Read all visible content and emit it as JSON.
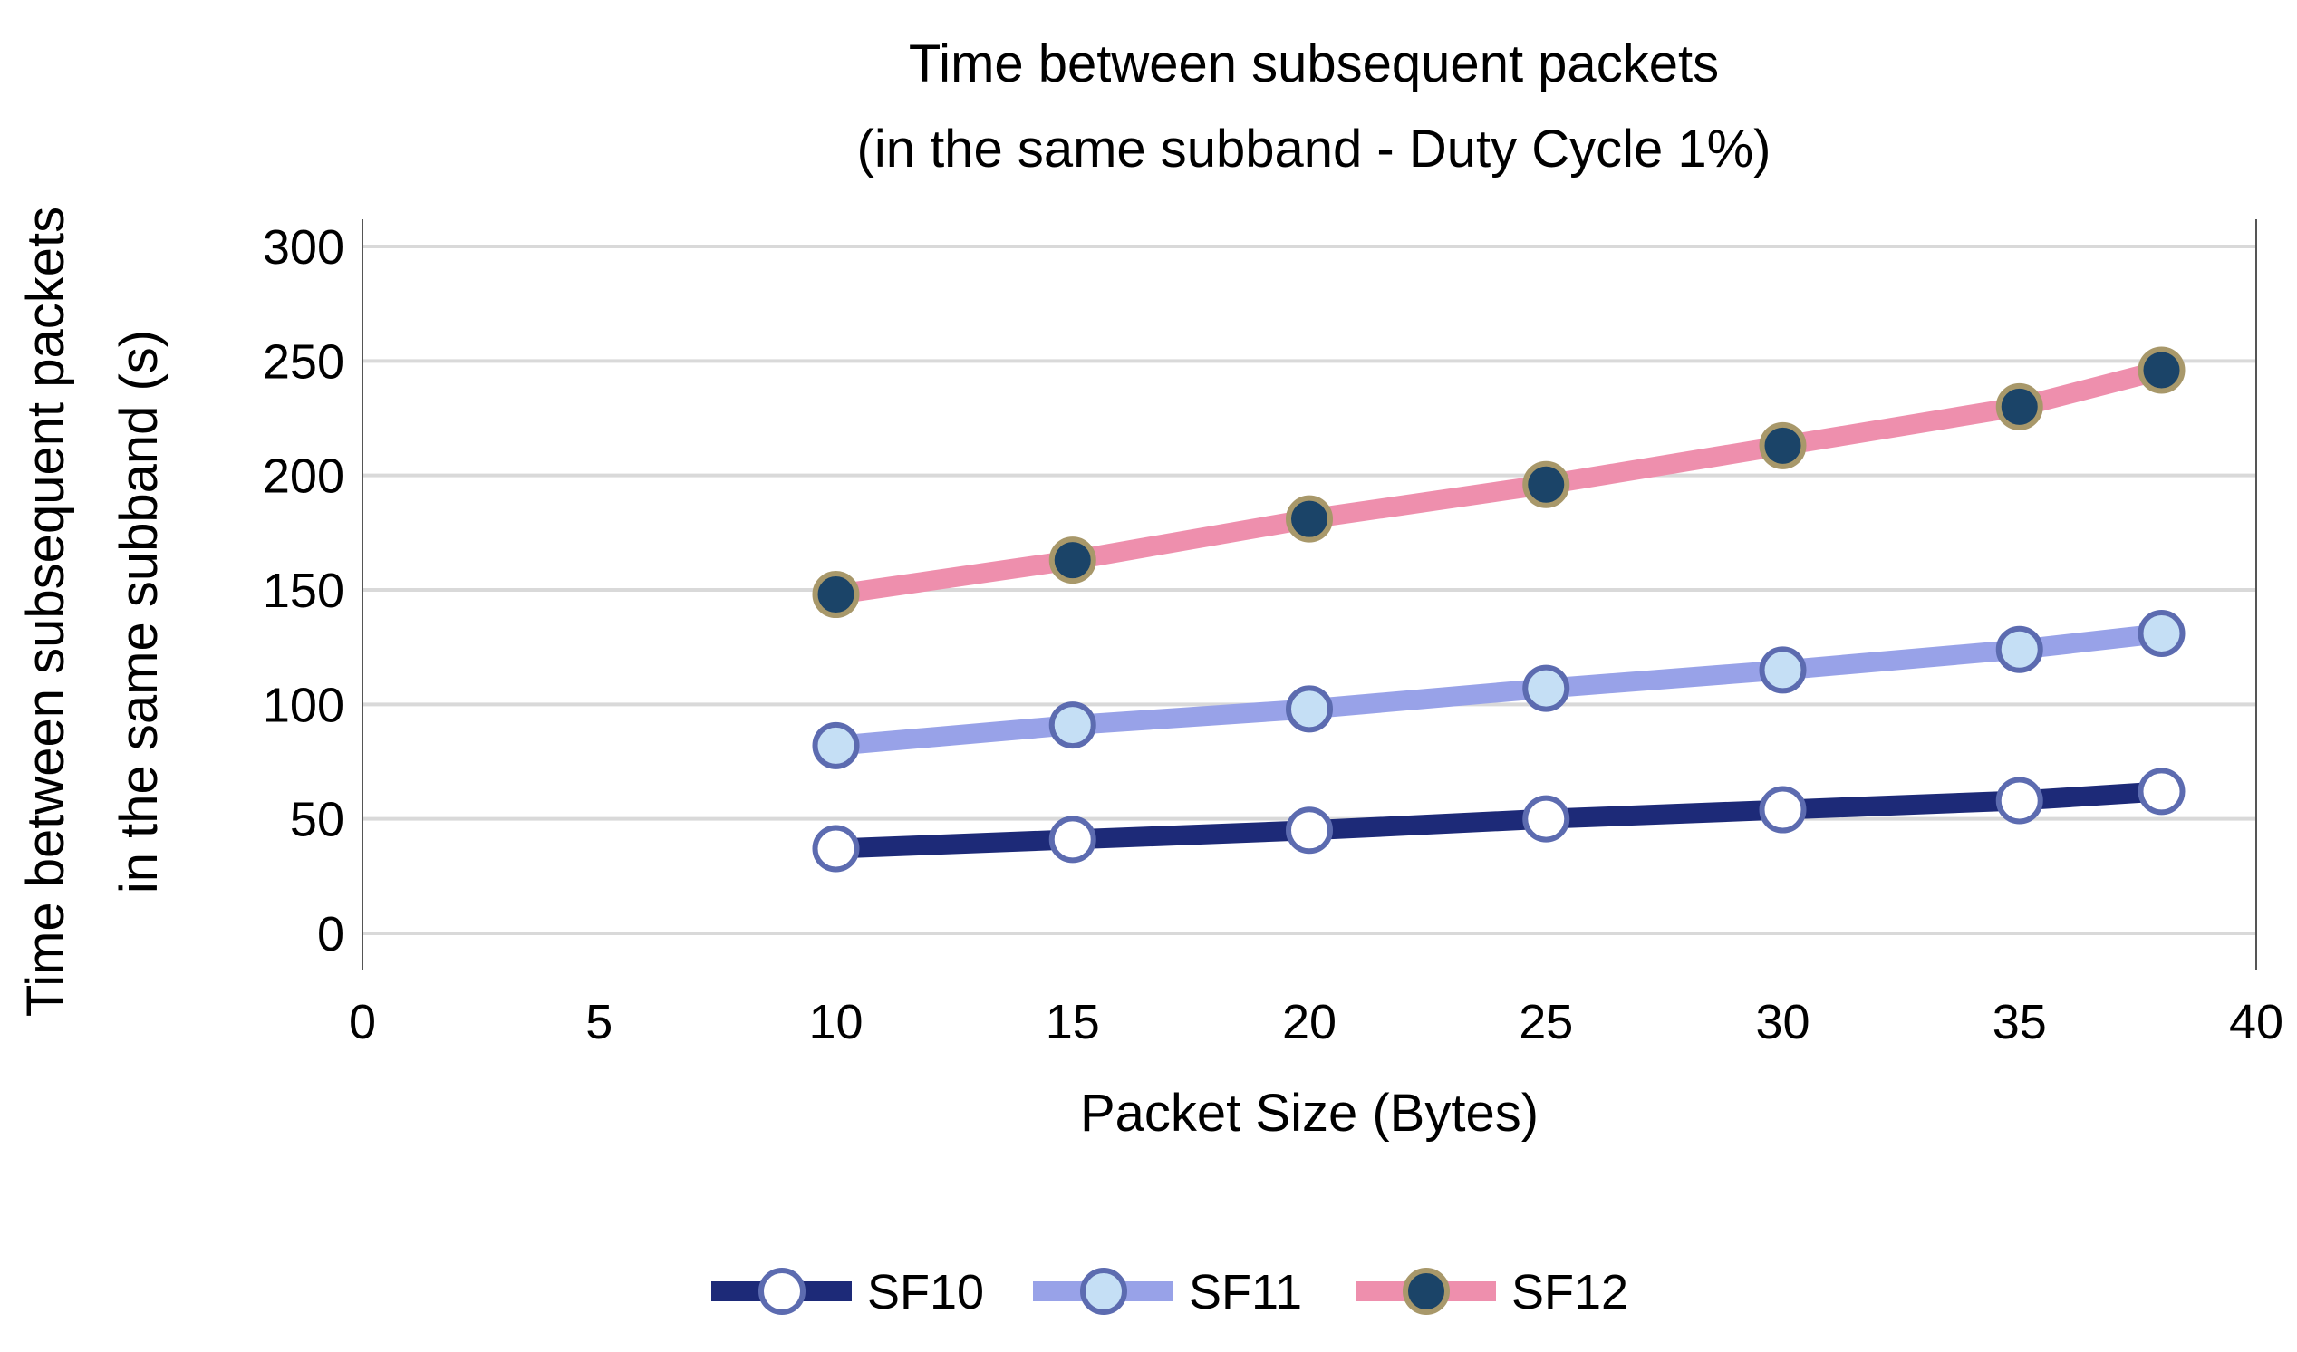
{
  "chart_data": {
    "type": "line",
    "title_lines": [
      "Time between subsequent packets",
      "(in the same subband - Duty Cycle 1%)"
    ],
    "xlabel": "Packet Size (Bytes)",
    "ylabel_lines": [
      "Time between subsequent packets",
      "in the same subband (s)"
    ],
    "xlim": [
      0,
      40
    ],
    "ylim": [
      0,
      300
    ],
    "xticks": [
      0,
      5,
      10,
      15,
      20,
      25,
      30,
      35,
      40
    ],
    "yticks": [
      0,
      50,
      100,
      150,
      200,
      250,
      300
    ],
    "grid": true,
    "legend_position": "bottom",
    "x": [
      10,
      15,
      20,
      25,
      30,
      35,
      38
    ],
    "series": [
      {
        "name": "SF10",
        "values": [
          37,
          41,
          45,
          50,
          54,
          58,
          62
        ],
        "line_color": "#1d2a78",
        "marker_fill": "#ffffff",
        "marker_stroke": "#5c6bb0"
      },
      {
        "name": "SF11",
        "values": [
          82,
          91,
          98,
          107,
          115,
          124,
          131
        ],
        "line_color": "#98a2e8",
        "marker_fill": "#c5dff5",
        "marker_stroke": "#5c6bb0"
      },
      {
        "name": "SF12",
        "values": [
          148,
          163,
          181,
          196,
          213,
          230,
          246
        ],
        "line_color": "#ee8fad",
        "marker_fill": "#1b4468",
        "marker_stroke": "#a8986a"
      }
    ]
  }
}
